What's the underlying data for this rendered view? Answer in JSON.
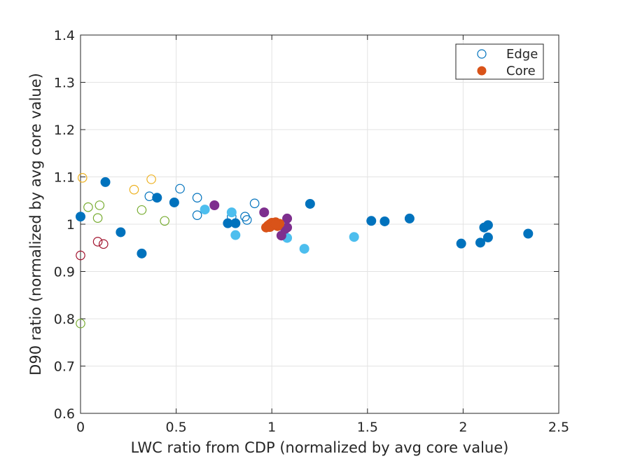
{
  "chart_data": {
    "type": "scatter",
    "title": "",
    "xlabel": "LWC ratio from CDP (normalized by avg core value)",
    "ylabel": "D90 ratio (normalized by avg core value)",
    "xlim": [
      0,
      2.5
    ],
    "ylim": [
      0.6,
      1.4
    ],
    "xticks": [
      0,
      0.5,
      1,
      1.5,
      2,
      2.5
    ],
    "xtick_labels": [
      "0",
      "0.5",
      "1",
      "1.5",
      "2",
      "2.5"
    ],
    "yticks": [
      0.6,
      0.7,
      0.8,
      0.9,
      1,
      1.1,
      1.2,
      1.3,
      1.4
    ],
    "ytick_labels": [
      "0.6",
      "0.7",
      "0.8",
      "0.9",
      "1",
      "1.1",
      "1.2",
      "1.3",
      "1.4"
    ],
    "grid": true,
    "legend": {
      "placement": "top-right",
      "entries": [
        {
          "label": "Edge",
          "marker": "open-circle",
          "color": "#0072BD"
        },
        {
          "label": "Core",
          "marker": "filled-circle",
          "color": "#D95319"
        }
      ]
    },
    "series": [
      {
        "marker": "open",
        "color": "#EDB120",
        "points": [
          [
            0.01,
            1.098
          ],
          [
            0.28,
            1.073
          ],
          [
            0.37,
            1.095
          ]
        ]
      },
      {
        "marker": "open",
        "color": "#77AC30",
        "points": [
          [
            0.04,
            1.036
          ],
          [
            0.09,
            1.013
          ],
          [
            0.1,
            1.04
          ],
          [
            0.32,
            1.03
          ],
          [
            0.44,
            1.007
          ],
          [
            0.0,
            0.79
          ]
        ]
      },
      {
        "marker": "open",
        "color": "#A2142F",
        "points": [
          [
            0.0,
            0.934
          ],
          [
            0.09,
            0.963
          ],
          [
            0.12,
            0.958
          ]
        ]
      },
      {
        "marker": "open",
        "color": "#0072BD",
        "points": [
          [
            0.36,
            1.059
          ],
          [
            0.52,
            1.075
          ],
          [
            0.61,
            1.056
          ],
          [
            0.61,
            1.019
          ],
          [
            0.79,
            1.016
          ],
          [
            0.86,
            1.016
          ],
          [
            0.87,
            1.009
          ],
          [
            0.91,
            1.044
          ]
        ]
      },
      {
        "marker": "filled",
        "color": "#0072BD",
        "points": [
          [
            0.0,
            1.016
          ],
          [
            0.13,
            1.089
          ],
          [
            0.21,
            0.983
          ],
          [
            0.32,
            0.938
          ],
          [
            0.4,
            1.056
          ],
          [
            0.49,
            1.046
          ],
          [
            0.77,
            1.002
          ],
          [
            0.81,
            1.002
          ],
          [
            1.2,
            1.043
          ],
          [
            1.52,
            1.007
          ],
          [
            1.59,
            1.006
          ],
          [
            1.72,
            1.012
          ],
          [
            1.99,
            0.959
          ],
          [
            2.09,
            0.961
          ],
          [
            2.11,
            0.993
          ],
          [
            2.13,
            0.998
          ],
          [
            2.13,
            0.972
          ],
          [
            2.34,
            0.98
          ]
        ]
      },
      {
        "marker": "filled",
        "color": "#4DBEEE",
        "points": [
          [
            0.65,
            1.031
          ],
          [
            0.79,
            1.025
          ],
          [
            0.81,
            0.977
          ],
          [
            1.05,
            0.997
          ],
          [
            1.08,
            0.971
          ],
          [
            1.17,
            0.948
          ],
          [
            1.43,
            0.973
          ]
        ]
      },
      {
        "marker": "filled",
        "color": "#7E2F8E",
        "points": [
          [
            0.7,
            1.04
          ],
          [
            0.96,
            1.025
          ],
          [
            1.05,
            0.976
          ],
          [
            1.07,
            0.99
          ],
          [
            1.08,
            1.012
          ],
          [
            1.08,
            0.993
          ]
        ]
      },
      {
        "marker": "filled",
        "color": "#D95319",
        "points": [
          [
            0.97,
            0.993
          ],
          [
            0.98,
            0.997
          ],
          [
            0.99,
            1.0
          ],
          [
            1.0,
            1.003
          ],
          [
            1.01,
            0.998
          ],
          [
            1.02,
            1.004
          ],
          [
            1.03,
            0.996
          ],
          [
            1.04,
            1.001
          ],
          [
            0.99,
            0.994
          ],
          [
            1.02,
            1.0
          ]
        ]
      }
    ]
  }
}
